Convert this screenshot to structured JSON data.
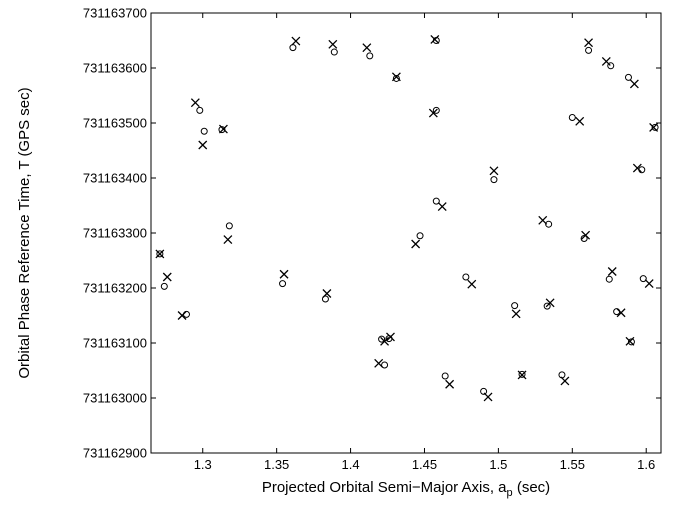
{
  "chart_data": {
    "type": "scatter",
    "title": "",
    "xlabel": "Projected Orbital Semi−Major Axis, a",
    "xlabel_subscript": "p",
    "xlabel_suffix": " (sec)",
    "ylabel": "Orbital Phase Reference Time, T (GPS sec)",
    "xlim": [
      1.265,
      1.61
    ],
    "ylim": [
      731162900,
      731163700
    ],
    "xticks": [
      1.3,
      1.35,
      1.4,
      1.45,
      1.5,
      1.55,
      1.6
    ],
    "xtick_labels": [
      "1.3",
      "1.35",
      "1.4",
      "1.45",
      "1.5",
      "1.55",
      "1.6"
    ],
    "yticks": [
      731162900,
      731163000,
      731163100,
      731163200,
      731163300,
      731163400,
      731163500,
      731163600,
      731163700
    ],
    "ytick_labels": [
      "731162900",
      "731163000",
      "731163100",
      "731163200",
      "731163300",
      "731163400",
      "731163500",
      "731163600",
      "731163700"
    ],
    "grid": false,
    "legend": "none",
    "colors": {
      "markers": "#000000",
      "axes": "#000000",
      "background": "#ffffff"
    },
    "series": [
      {
        "marker": "x",
        "points": [
          [
            1.271,
            731163262
          ],
          [
            1.276,
            731163220
          ],
          [
            1.286,
            731163150
          ],
          [
            1.295,
            731163537
          ],
          [
            1.3,
            731163460
          ],
          [
            1.314,
            731163489
          ],
          [
            1.317,
            731163288
          ],
          [
            1.355,
            731163225
          ],
          [
            1.363,
            731163649
          ],
          [
            1.384,
            731163190
          ],
          [
            1.388,
            731163643
          ],
          [
            1.411,
            731163637
          ],
          [
            1.419,
            731163063
          ],
          [
            1.423,
            731163103
          ],
          [
            1.427,
            731163111
          ],
          [
            1.431,
            731163584
          ],
          [
            1.444,
            731163280
          ],
          [
            1.456,
            731163518
          ],
          [
            1.457,
            731163652
          ],
          [
            1.462,
            731163348
          ],
          [
            1.467,
            731163025
          ],
          [
            1.482,
            731163207
          ],
          [
            1.493,
            731163002
          ],
          [
            1.497,
            731163413
          ],
          [
            1.512,
            731163153
          ],
          [
            1.516,
            731163042
          ],
          [
            1.53,
            731163323
          ],
          [
            1.535,
            731163173
          ],
          [
            1.545,
            731163031
          ],
          [
            1.555,
            731163503
          ],
          [
            1.559,
            731163296
          ],
          [
            1.561,
            731163646
          ],
          [
            1.573,
            731163612
          ],
          [
            1.577,
            731163230
          ],
          [
            1.583,
            731163155
          ],
          [
            1.589,
            731163103
          ],
          [
            1.592,
            731163571
          ],
          [
            1.594,
            731163418
          ],
          [
            1.602,
            731163208
          ],
          [
            1.605,
            731163492
          ]
        ]
      },
      {
        "marker": "o",
        "points": [
          [
            1.271,
            731163262
          ],
          [
            1.274,
            731163203
          ],
          [
            1.289,
            731163152
          ],
          [
            1.298,
            731163523
          ],
          [
            1.301,
            731163485
          ],
          [
            1.313,
            731163488
          ],
          [
            1.318,
            731163313
          ],
          [
            1.354,
            731163208
          ],
          [
            1.361,
            731163637
          ],
          [
            1.383,
            731163180
          ],
          [
            1.389,
            731163629
          ],
          [
            1.413,
            731163622
          ],
          [
            1.421,
            731163107
          ],
          [
            1.423,
            731163060
          ],
          [
            1.426,
            731163108
          ],
          [
            1.431,
            731163581
          ],
          [
            1.447,
            731163295
          ],
          [
            1.458,
            731163523
          ],
          [
            1.458,
            731163650
          ],
          [
            1.458,
            731163358
          ],
          [
            1.464,
            731163040
          ],
          [
            1.478,
            731163220
          ],
          [
            1.49,
            731163012
          ],
          [
            1.497,
            731163397
          ],
          [
            1.511,
            731163168
          ],
          [
            1.516,
            731163043
          ],
          [
            1.534,
            731163316
          ],
          [
            1.533,
            731163167
          ],
          [
            1.543,
            731163042
          ],
          [
            1.55,
            731163510
          ],
          [
            1.558,
            731163290
          ],
          [
            1.561,
            731163632
          ],
          [
            1.576,
            731163604
          ],
          [
            1.575,
            731163216
          ],
          [
            1.58,
            731163157
          ],
          [
            1.59,
            731163102
          ],
          [
            1.588,
            731163583
          ],
          [
            1.597,
            731163415
          ],
          [
            1.598,
            731163217
          ],
          [
            1.606,
            731163492
          ]
        ]
      }
    ]
  }
}
